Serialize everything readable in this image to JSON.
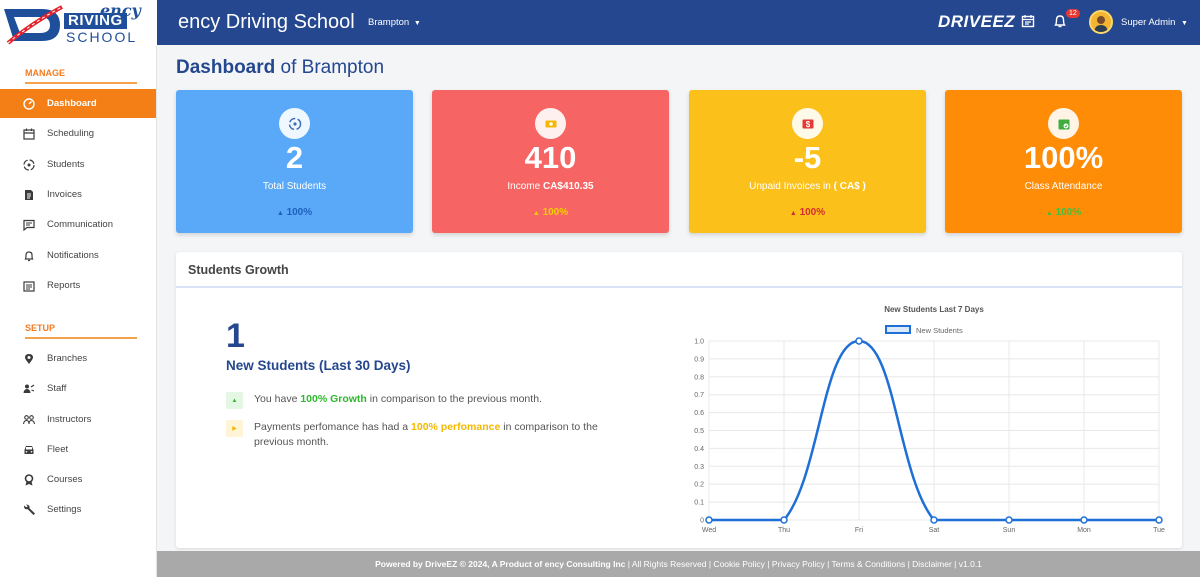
{
  "logo": {
    "line1": "ency",
    "line2": "RIVING",
    "line3": "SCHOOL"
  },
  "header": {
    "title": "ency Driving School",
    "branch": "Brampton",
    "brand": "DRIVEEZ",
    "notification_count": "12",
    "user": "Super Admin"
  },
  "sidebar": {
    "manage_title": "MANAGE",
    "setup_title": "SETUP",
    "manage_items": [
      {
        "label": "Dashboard",
        "icon": "gauge-icon"
      },
      {
        "label": "Scheduling",
        "icon": "calendar-icon"
      },
      {
        "label": "Students",
        "icon": "steering-icon"
      },
      {
        "label": "Invoices",
        "icon": "invoice-icon"
      },
      {
        "label": "Communication",
        "icon": "chat-icon"
      },
      {
        "label": "Notifications",
        "icon": "bell-icon"
      },
      {
        "label": "Reports",
        "icon": "report-icon"
      }
    ],
    "setup_items": [
      {
        "label": "Branches",
        "icon": "location-pin-icon"
      },
      {
        "label": "Staff",
        "icon": "staff-icon"
      },
      {
        "label": "Instructors",
        "icon": "instructors-icon"
      },
      {
        "label": "Fleet",
        "icon": "car-icon"
      },
      {
        "label": "Courses",
        "icon": "award-icon"
      },
      {
        "label": "Settings",
        "icon": "wrench-icon"
      }
    ]
  },
  "page": {
    "title_bold": "Dashboard",
    "title_rest": " of Brampton"
  },
  "cards": [
    {
      "value": "2",
      "label": "Total Students",
      "label_bold": "",
      "pct": "100%",
      "bg": "#5aa9f8",
      "pct_color": "#1f5fbf",
      "arrow_color": "#1f5fbf",
      "icon": "steering-icon"
    },
    {
      "value": "410",
      "label": "Income ",
      "label_bold": "CA$410.35",
      "pct": "100%",
      "bg": "#f76464",
      "pct_color": "#f5d000",
      "arrow_color": "#f5d000",
      "icon": "cash-icon"
    },
    {
      "value": "-5",
      "label": "Unpaid Invoices in ",
      "label_bold": "( CA$ )",
      "pct": "100%",
      "bg": "#fcc01a",
      "pct_color": "#d32f2f",
      "arrow_color": "#d32f2f",
      "icon": "dollar-icon"
    },
    {
      "value": "100%",
      "label": "Class Attendance",
      "label_bold": "",
      "pct": "100%",
      "bg": "#ff8c06",
      "pct_color": "#3fbf3f",
      "arrow_color": "#3fbf3f",
      "icon": "calendar-check-icon"
    }
  ],
  "growth": {
    "panel_title": "Students Growth",
    "big_number": "1",
    "subtitle": "New Students (Last 30 Days)",
    "stats": [
      {
        "pre": "You have ",
        "highlight": "100% Growth",
        "post": " in comparison to the previous month."
      },
      {
        "pre": "Payments perfomance has had a ",
        "highlight": "100% perfomance",
        "post": " in comparison to the previous month."
      }
    ]
  },
  "chart_data": {
    "type": "line",
    "title": "New Students Last 7 Days",
    "legend": "top",
    "x": [
      "Wed",
      "Thu",
      "Fri",
      "Sat",
      "Sun",
      "Mon",
      "Tue"
    ],
    "series": [
      {
        "name": "New Students",
        "values": [
          0,
          0,
          1,
          0,
          0,
          0,
          0
        ]
      }
    ],
    "y_ticks": [
      "0",
      "0.1",
      "0.2",
      "0.3",
      "0.4",
      "0.5",
      "0.6",
      "0.7",
      "0.8",
      "0.9",
      "1.0"
    ],
    "ylim": [
      0,
      1
    ],
    "grid": true,
    "color": "#1e6fd6"
  },
  "footer": {
    "bold": "Powered by DriveEZ © 2024, A Product of ency Consulting Inc",
    "rest": " | All Rights Reserved | Cookie Policy | Privacy Policy | Terms & Conditions | Disclaimer | v1.0.1"
  }
}
